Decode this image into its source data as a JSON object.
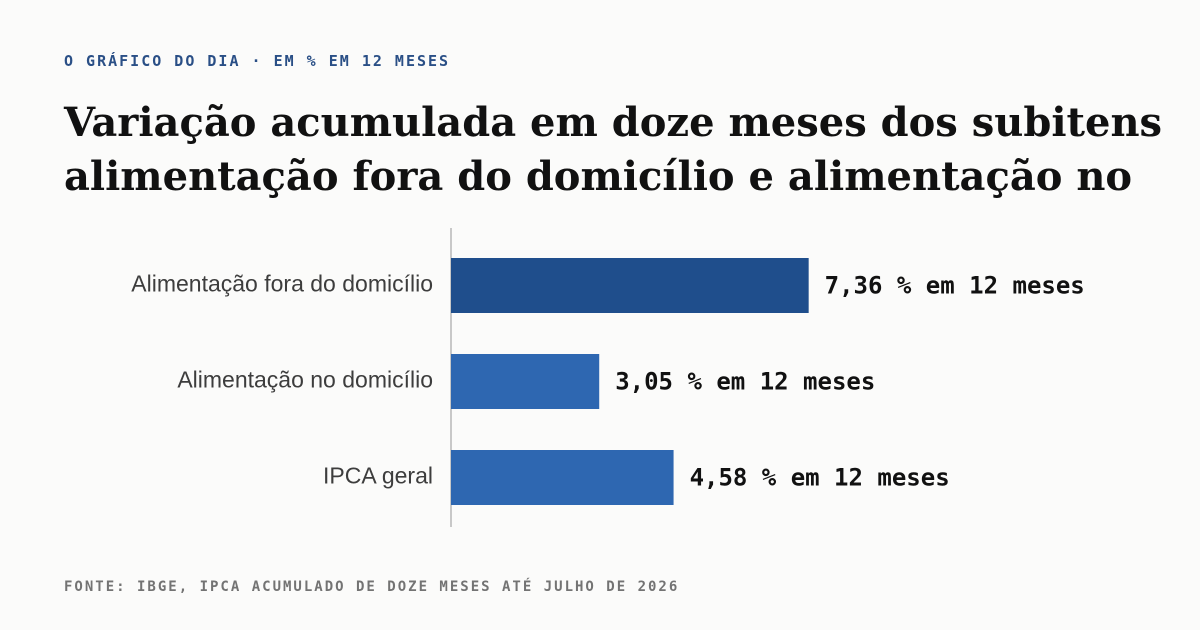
{
  "header": {
    "kicker": "O GRÁFICO DO DIA · EM % EM 12 MESES",
    "title_line1": "Variação acumulada em doze meses dos subitens",
    "title_line2": "alimentação fora do domicílio e alimentação no"
  },
  "footer": {
    "source": "FONTE: IBGE, IPCA ACUMULADO DE DOZE MESES ATÉ JULHO DE 2026"
  },
  "chart_data": {
    "type": "bar",
    "orientation": "horizontal",
    "categories": [
      "Alimentação fora do domicílio",
      "Alimentação no domicílio",
      "IPCA geral"
    ],
    "values": [
      7.36,
      3.05,
      4.58
    ],
    "data_labels": [
      "7,36 % em 12 meses",
      "3,05 % em 12 meses",
      "4,58 % em 12 meses"
    ],
    "colors": [
      "#1f4e8c",
      "#2e67b1",
      "#2e67b1"
    ],
    "xlim": [
      0,
      9.26
    ],
    "axis_color": "#c8c8c8"
  }
}
